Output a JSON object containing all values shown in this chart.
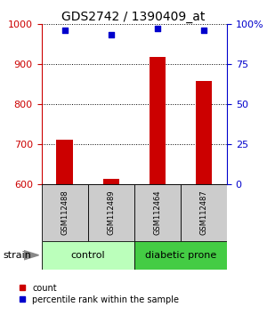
{
  "title": "GDS2742 / 1390409_at",
  "samples": [
    "GSM112488",
    "GSM112489",
    "GSM112464",
    "GSM112487"
  ],
  "counts": [
    710,
    613,
    918,
    858
  ],
  "percentile_ranks": [
    96,
    93,
    97,
    96
  ],
  "ylim_left": [
    600,
    1000
  ],
  "ylim_right": [
    0,
    100
  ],
  "yticks_left": [
    600,
    700,
    800,
    900,
    1000
  ],
  "yticks_right": [
    0,
    25,
    50,
    75,
    100
  ],
  "bar_color": "#cc0000",
  "dot_color": "#0000cc",
  "bar_width": 0.35,
  "groups": [
    {
      "label": "control",
      "indices": [
        0,
        1
      ],
      "color": "#bbffbb"
    },
    {
      "label": "diabetic prone",
      "indices": [
        2,
        3
      ],
      "color": "#44cc44"
    }
  ],
  "strain_label": "strain",
  "left_tick_color": "#cc0000",
  "right_tick_color": "#0000cc",
  "title_fontsize": 10,
  "tick_fontsize": 8,
  "sample_fontsize": 6,
  "group_fontsize": 8,
  "legend_fontsize": 7
}
